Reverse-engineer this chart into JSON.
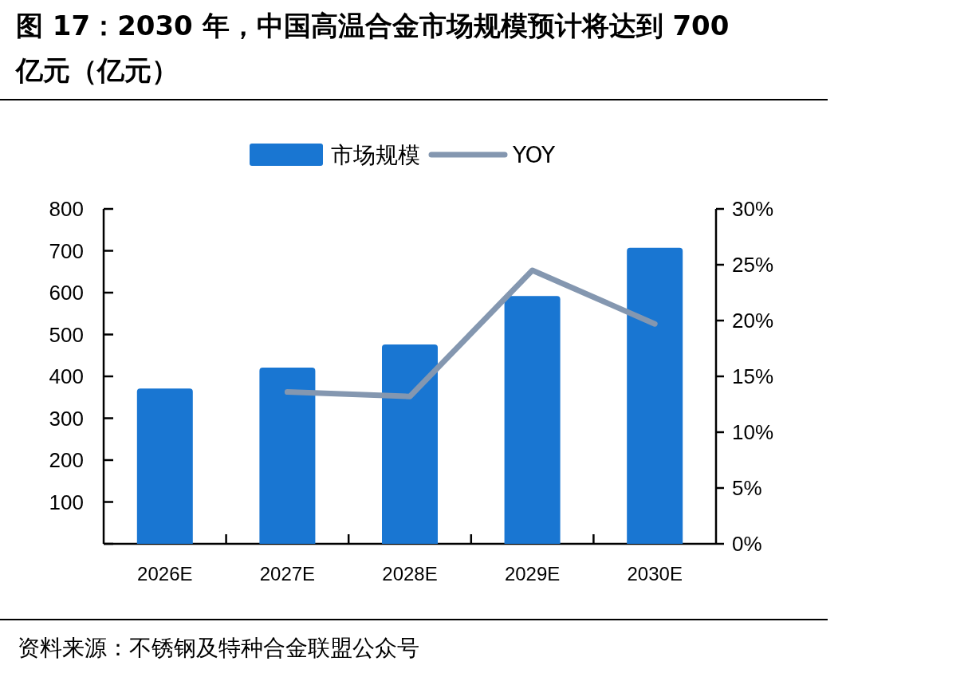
{
  "chart_data": {
    "type": "bar",
    "title": "图 17：2030 年，中国高温合金市场规模预计将达到 700 亿元（亿元）",
    "categories": [
      "2026E",
      "2027E",
      "2028E",
      "2029E",
      "2030E"
    ],
    "series": [
      {
        "name": "市场规模",
        "color": "#1976d2",
        "values": [
          371,
          421,
          476,
          592,
          707
        ]
      },
      {
        "name": "YOY",
        "type": "line",
        "axis": "y2",
        "color": "#8497b0",
        "values": [
          null,
          13.6,
          13.2,
          24.5,
          19.7
        ]
      }
    ],
    "ylim": [
      0,
      800
    ],
    "yticks": [
      {
        "value": 0,
        "label": null
      },
      100,
      200,
      300,
      400,
      500,
      600,
      700,
      800
    ],
    "y2lim": [
      0,
      30
    ],
    "y2ticks": [
      {
        "value": 0,
        "label": "0%"
      },
      {
        "value": 5,
        "label": "5%"
      },
      {
        "value": 10,
        "label": "10%"
      },
      {
        "value": 15,
        "label": "15%"
      },
      {
        "value": 20,
        "label": "20%"
      },
      {
        "value": 25,
        "label": "25%"
      },
      {
        "value": 30,
        "label": "30%"
      }
    ],
    "legend": "top",
    "annotations": [
      "资料来源：不锈钢及特种合金联盟公众号"
    ]
  }
}
